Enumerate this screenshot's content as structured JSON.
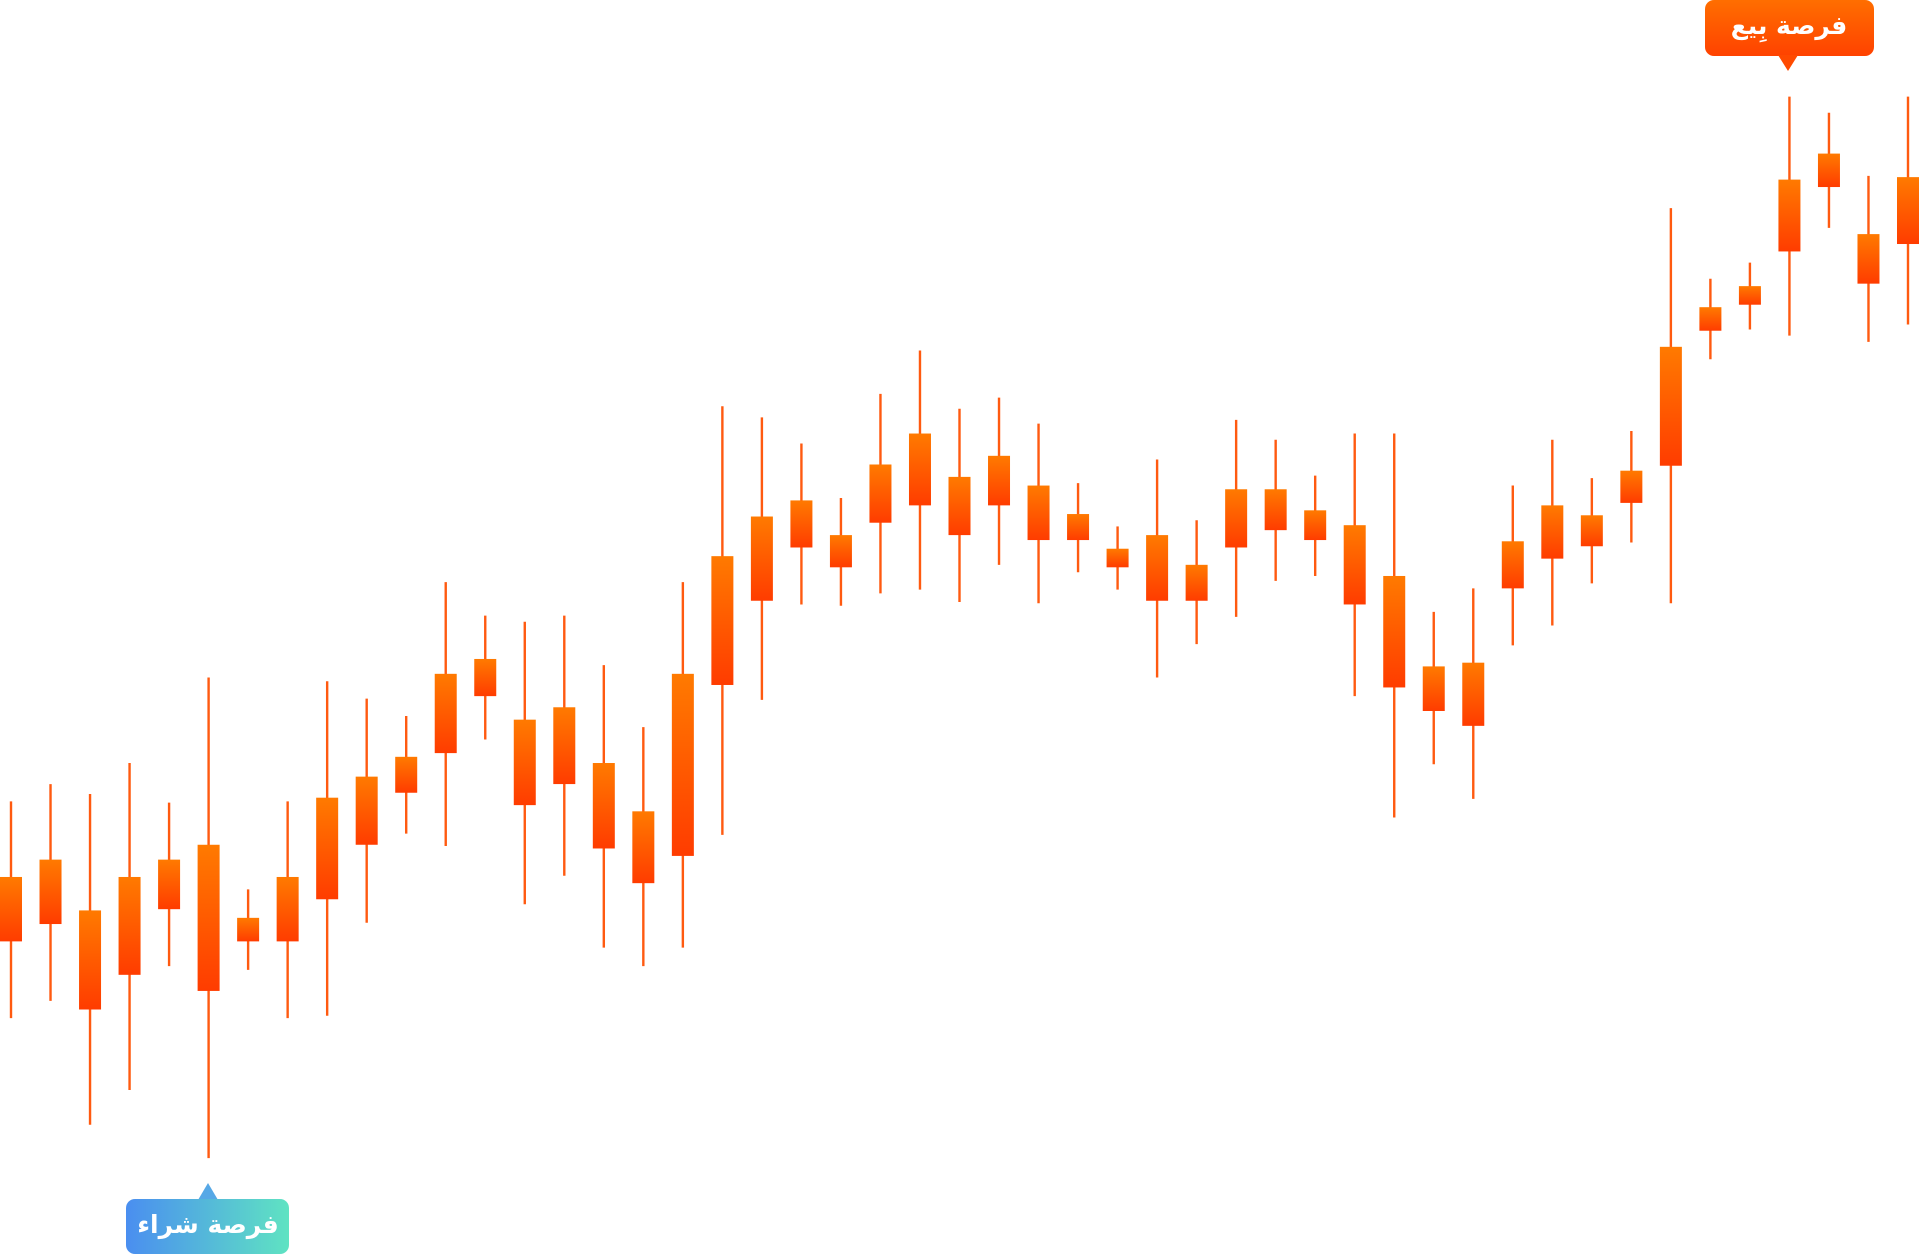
{
  "chart_data": {
    "type": "candlestick",
    "ylim": [
      0,
      101.4
    ],
    "color": "#ff5a10",
    "open": [
      25.4,
      26.8,
      19.9,
      22.7,
      28.0,
      21.4,
      25.4,
      25.4,
      28.8,
      33.2,
      37.4,
      40.6,
      45.2,
      36.4,
      38.1,
      32.9,
      30.1,
      32.3,
      46.1,
      52.9,
      57.2,
      55.6,
      59.2,
      60.6,
      58.2,
      60.6,
      57.8,
      57.8,
      55.6,
      52.9,
      52.9,
      57.2,
      58.6,
      57.8,
      52.6,
      45.9,
      44.0,
      42.8,
      53.9,
      56.3,
      57.3,
      60.8,
      63.8,
      74.7,
      76.8,
      81.1,
      86.3,
      78.5,
      81.7
    ],
    "high": [
      36.7,
      38.1,
      37.3,
      39.8,
      36.6,
      46.7,
      29.6,
      36.7,
      46.4,
      45.0,
      43.6,
      54.4,
      51.7,
      51.2,
      51.7,
      47.7,
      42.7,
      54.4,
      68.6,
      67.7,
      65.6,
      61.2,
      69.6,
      73.1,
      68.4,
      69.3,
      67.2,
      62.4,
      58.9,
      64.3,
      59.4,
      67.5,
      65.9,
      63.0,
      66.4,
      66.4,
      52.0,
      53.9,
      62.2,
      65.9,
      62.8,
      66.6,
      84.6,
      78.9,
      80.2,
      93.6,
      92.3,
      87.2,
      93.6
    ],
    "low": [
      19.2,
      20.6,
      10.6,
      13.4,
      23.4,
      7.9,
      23.1,
      19.2,
      19.4,
      26.9,
      34.1,
      33.1,
      41.7,
      28.4,
      30.7,
      24.9,
      23.4,
      24.9,
      34.0,
      44.9,
      52.6,
      52.5,
      53.5,
      53.8,
      52.8,
      55.8,
      52.7,
      55.2,
      53.8,
      46.7,
      49.4,
      51.6,
      54.5,
      54.9,
      45.2,
      35.4,
      39.7,
      36.9,
      49.3,
      50.9,
      54.3,
      57.6,
      52.7,
      72.4,
      74.8,
      74.3,
      83.0,
      73.8,
      75.2
    ],
    "close": [
      30.6,
      32.0,
      27.9,
      30.6,
      32.0,
      33.2,
      27.3,
      30.6,
      37.0,
      38.7,
      40.3,
      47.0,
      48.2,
      43.3,
      44.3,
      39.8,
      35.9,
      47.0,
      56.5,
      59.7,
      61.0,
      58.2,
      63.9,
      66.4,
      62.9,
      64.6,
      62.2,
      59.9,
      57.1,
      58.2,
      55.8,
      61.9,
      61.9,
      60.2,
      59.0,
      54.9,
      47.6,
      47.9,
      57.7,
      60.6,
      59.8,
      63.4,
      73.4,
      76.6,
      78.3,
      86.9,
      89.0,
      82.5,
      87.1
    ],
    "annotations": [
      "فرصة بِيع",
      "فرصة شراء"
    ]
  }
}
